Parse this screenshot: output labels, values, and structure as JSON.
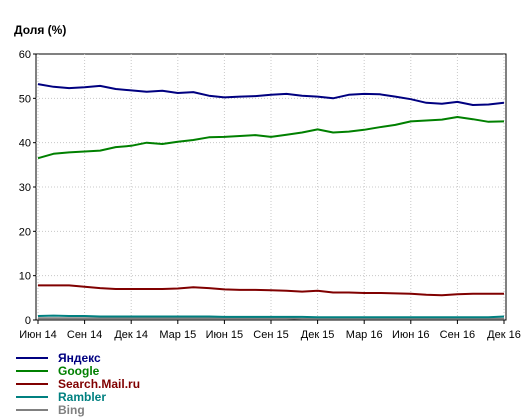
{
  "chart_data": {
    "type": "line",
    "ylabel": "Доля (%)",
    "xlabel": "",
    "ylim": [
      0,
      60
    ],
    "yticks": [
      0,
      10,
      20,
      30,
      40,
      50,
      60
    ],
    "grid": true,
    "legend_position": "bottom-left",
    "x_points": 31,
    "x_tick_labels": [
      {
        "index": 0,
        "label": "Июн 14"
      },
      {
        "index": 3,
        "label": "Сен 14"
      },
      {
        "index": 6,
        "label": "Дек 14"
      },
      {
        "index": 9,
        "label": "Мар 15"
      },
      {
        "index": 12,
        "label": "Июн 15"
      },
      {
        "index": 15,
        "label": "Сен 15"
      },
      {
        "index": 18,
        "label": "Дек 15"
      },
      {
        "index": 21,
        "label": "Мар 16"
      },
      {
        "index": 24,
        "label": "Июн 16"
      },
      {
        "index": 27,
        "label": "Сен 16"
      },
      {
        "index": 30,
        "label": "Дек 16"
      }
    ],
    "series": [
      {
        "name": "Яндекс",
        "color": "#000080",
        "values": [
          53.2,
          52.6,
          52.3,
          52.5,
          52.8,
          52.1,
          51.8,
          51.5,
          51.7,
          51.2,
          51.4,
          50.6,
          50.2,
          50.4,
          50.5,
          50.8,
          51.0,
          50.6,
          50.4,
          50.0,
          50.8,
          51.0,
          50.9,
          50.4,
          49.8,
          49.0,
          48.8,
          49.2,
          48.5,
          48.6,
          49.0
        ]
      },
      {
        "name": "Google",
        "color": "#008000",
        "values": [
          36.5,
          37.5,
          37.8,
          38.0,
          38.2,
          39.0,
          39.3,
          40.0,
          39.7,
          40.2,
          40.6,
          41.2,
          41.3,
          41.5,
          41.7,
          41.3,
          41.8,
          42.3,
          43.0,
          42.3,
          42.5,
          42.9,
          43.5,
          44.0,
          44.8,
          45.0,
          45.2,
          45.8,
          45.3,
          44.7,
          44.8
        ]
      },
      {
        "name": "Search.Mail.ru",
        "color": "#800000",
        "values": [
          7.8,
          7.8,
          7.8,
          7.5,
          7.2,
          7.0,
          7.0,
          7.0,
          7.0,
          7.1,
          7.4,
          7.2,
          6.9,
          6.8,
          6.8,
          6.7,
          6.6,
          6.4,
          6.6,
          6.2,
          6.2,
          6.1,
          6.1,
          6.0,
          5.9,
          5.7,
          5.6,
          5.8,
          5.9,
          5.9,
          5.9
        ]
      },
      {
        "name": "Rambler",
        "color": "#008080",
        "values": [
          0.9,
          1.0,
          0.9,
          0.9,
          0.8,
          0.8,
          0.8,
          0.8,
          0.8,
          0.8,
          0.8,
          0.8,
          0.7,
          0.7,
          0.7,
          0.7,
          0.7,
          0.7,
          0.6,
          0.6,
          0.6,
          0.6,
          0.6,
          0.6,
          0.6,
          0.6,
          0.6,
          0.6,
          0.6,
          0.6,
          0.8
        ]
      },
      {
        "name": "Bing",
        "color": "#808080",
        "values": [
          0.4,
          0.4,
          0.4,
          0.4,
          0.4,
          0.4,
          0.4,
          0.4,
          0.4,
          0.4,
          0.4,
          0.4,
          0.4,
          0.4,
          0.4,
          0.4,
          0.4,
          0.3,
          0.3,
          0.3,
          0.3,
          0.3,
          0.3,
          0.3,
          0.3,
          0.3,
          0.3,
          0.3,
          0.3,
          0.3,
          0.3
        ]
      }
    ]
  }
}
